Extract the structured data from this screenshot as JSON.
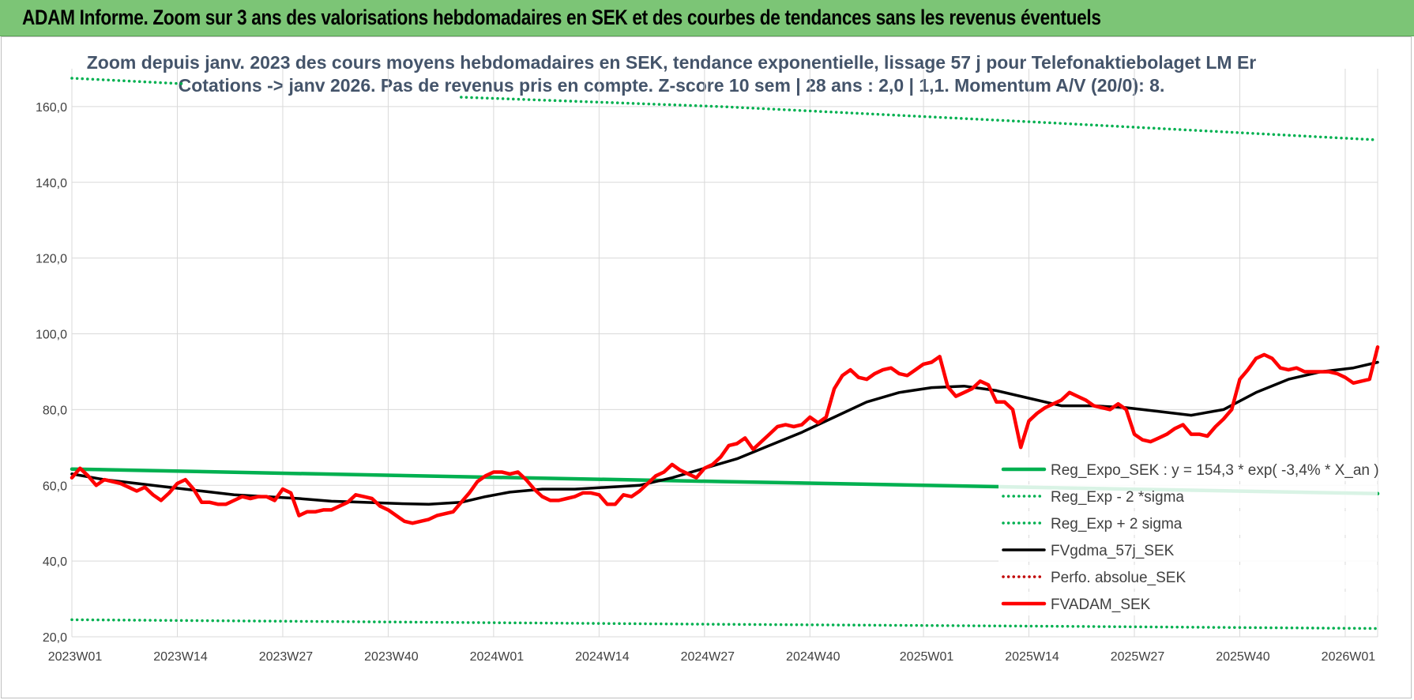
{
  "banner": {
    "title": "ADAM Informe. Zoom sur 3 ans des valorisations hebdomadaires en SEK et des courbes de tendances sans les revenus éventuels",
    "bg_color": "#7cc576"
  },
  "chart_data": {
    "type": "line",
    "title_line1": "Zoom depuis janv. 2023 des cours moyens hebdomadaires en SEK, tendance exponentielle, lissage 57 j pour Telefonaktiebolaget LM Er",
    "title_line2": "Cotations -> janv 2026. Pas de revenus pris en compte. Z-score 10 sem | 28 ans : 2,0 | 1,1. Momentum A/V (20/0): 8.",
    "xlabel": "",
    "ylabel": "",
    "ylim": [
      20,
      170
    ],
    "xlim": [
      0,
      161
    ],
    "grid": true,
    "legend_position": "right-bottom",
    "y_ticks": [
      {
        "value": 20,
        "label": "20,0"
      },
      {
        "value": 40,
        "label": "40,0"
      },
      {
        "value": 60,
        "label": "60,0"
      },
      {
        "value": 80,
        "label": "80,0"
      },
      {
        "value": 100,
        "label": "100,0"
      },
      {
        "value": 120,
        "label": "120,0"
      },
      {
        "value": 140,
        "label": "140,0"
      },
      {
        "value": 160,
        "label": "160,0"
      }
    ],
    "x_ticks": [
      {
        "week": 0,
        "label": "2023W01"
      },
      {
        "week": 13,
        "label": "2023W14"
      },
      {
        "week": 26,
        "label": "2023W27"
      },
      {
        "week": 39,
        "label": "2023W40"
      },
      {
        "week": 52,
        "label": "2024W01"
      },
      {
        "week": 65,
        "label": "2024W14"
      },
      {
        "week": 78,
        "label": "2024W27"
      },
      {
        "week": 91,
        "label": "2024W40"
      },
      {
        "week": 105,
        "label": "2025W01"
      },
      {
        "week": 118,
        "label": "2025W14"
      },
      {
        "week": 131,
        "label": "2025W27"
      },
      {
        "week": 144,
        "label": "2025W40"
      },
      {
        "week": 157,
        "label": "2026W01"
      }
    ],
    "series": [
      {
        "name": "Reg_Expo_SEK : y = 154,3 * exp( -3,4% *  X_an )",
        "color": "#00b050",
        "style": "solid-thick",
        "points": [
          [
            0,
            64.3
          ],
          [
            40,
            62.6
          ],
          [
            80,
            61.0
          ],
          [
            120,
            59.4
          ],
          [
            161,
            57.8
          ]
        ]
      },
      {
        "name": "Reg_Exp - 2 *sigma",
        "color": "#00b050",
        "style": "dotted",
        "points": [
          [
            0,
            24.5
          ],
          [
            40,
            23.9
          ],
          [
            80,
            23.3
          ],
          [
            120,
            22.8
          ],
          [
            161,
            22.2
          ]
        ]
      },
      {
        "name": "Reg_Exp + 2 sigma",
        "color": "#00b050",
        "style": "dotted",
        "points": [
          [
            0,
            167.5
          ],
          [
            14,
            166.0
          ],
          [
            null,
            null
          ],
          [
            48,
            162.5
          ],
          [
            80,
            160.0
          ],
          [
            120,
            155.8
          ],
          [
            161,
            151.2
          ]
        ]
      },
      {
        "name": "FVgdma_57j_SEK",
        "color": "#000000",
        "style": "solid",
        "points": [
          [
            0,
            63.0
          ],
          [
            4,
            61.5
          ],
          [
            8,
            60.5
          ],
          [
            12,
            59.5
          ],
          [
            16,
            58.5
          ],
          [
            20,
            57.5
          ],
          [
            24,
            57.0
          ],
          [
            28,
            56.5
          ],
          [
            32,
            55.8
          ],
          [
            36,
            55.5
          ],
          [
            40,
            55.2
          ],
          [
            44,
            55.0
          ],
          [
            48,
            55.5
          ],
          [
            51,
            57.0
          ],
          [
            54,
            58.2
          ],
          [
            58,
            59.0
          ],
          [
            62,
            59.0
          ],
          [
            66,
            59.5
          ],
          [
            70,
            60.0
          ],
          [
            74,
            62.0
          ],
          [
            78,
            64.5
          ],
          [
            82,
            67.0
          ],
          [
            86,
            70.5
          ],
          [
            90,
            74.0
          ],
          [
            94,
            78.0
          ],
          [
            98,
            82.0
          ],
          [
            102,
            84.5
          ],
          [
            106,
            85.8
          ],
          [
            110,
            86.2
          ],
          [
            114,
            85.0
          ],
          [
            118,
            83.0
          ],
          [
            122,
            81.0
          ],
          [
            126,
            81.0
          ],
          [
            130,
            80.5
          ],
          [
            134,
            79.5
          ],
          [
            138,
            78.5
          ],
          [
            142,
            80.0
          ],
          [
            146,
            84.5
          ],
          [
            150,
            88.0
          ],
          [
            154,
            90.0
          ],
          [
            158,
            91.0
          ],
          [
            161,
            92.5
          ]
        ]
      },
      {
        "name": "Perfo. absolue_SEK",
        "color": "#c00000",
        "style": "dotted",
        "points": []
      },
      {
        "name": "FVADAM_SEK",
        "color": "#ff0000",
        "style": "solid-thick",
        "points": [
          [
            0,
            62.0
          ],
          [
            1,
            64.5
          ],
          [
            2,
            62.5
          ],
          [
            3,
            60.0
          ],
          [
            4,
            61.5
          ],
          [
            5,
            61.0
          ],
          [
            6,
            60.5
          ],
          [
            7,
            59.5
          ],
          [
            8,
            58.5
          ],
          [
            9,
            59.5
          ],
          [
            10,
            57.5
          ],
          [
            11,
            56.0
          ],
          [
            12,
            58.0
          ],
          [
            13,
            60.5
          ],
          [
            14,
            61.5
          ],
          [
            15,
            59.0
          ],
          [
            16,
            55.5
          ],
          [
            17,
            55.5
          ],
          [
            18,
            55.0
          ],
          [
            19,
            55.0
          ],
          [
            20,
            56.0
          ],
          [
            21,
            57.0
          ],
          [
            22,
            56.5
          ],
          [
            23,
            57.0
          ],
          [
            24,
            57.0
          ],
          [
            25,
            56.0
          ],
          [
            26,
            59.0
          ],
          [
            27,
            58.0
          ],
          [
            28,
            52.0
          ],
          [
            29,
            53.0
          ],
          [
            30,
            53.0
          ],
          [
            31,
            53.5
          ],
          [
            32,
            53.5
          ],
          [
            33,
            54.5
          ],
          [
            34,
            55.5
          ],
          [
            35,
            57.5
          ],
          [
            36,
            57.0
          ],
          [
            37,
            56.5
          ],
          [
            38,
            54.5
          ],
          [
            39,
            53.5
          ],
          [
            40,
            52.0
          ],
          [
            41,
            50.5
          ],
          [
            42,
            50.0
          ],
          [
            43,
            50.5
          ],
          [
            44,
            51.0
          ],
          [
            45,
            52.0
          ],
          [
            46,
            52.5
          ],
          [
            47,
            53.0
          ],
          [
            48,
            55.5
          ],
          [
            49,
            58.0
          ],
          [
            50,
            61.0
          ],
          [
            51,
            62.5
          ],
          [
            52,
            63.5
          ],
          [
            53,
            63.5
          ],
          [
            54,
            63.0
          ],
          [
            55,
            63.5
          ],
          [
            56,
            61.5
          ],
          [
            57,
            59.0
          ],
          [
            58,
            57.0
          ],
          [
            59,
            56.0
          ],
          [
            60,
            56.0
          ],
          [
            61,
            56.5
          ],
          [
            62,
            57.0
          ],
          [
            63,
            58.0
          ],
          [
            64,
            58.0
          ],
          [
            65,
            57.5
          ],
          [
            66,
            55.0
          ],
          [
            67,
            55.0
          ],
          [
            68,
            57.5
          ],
          [
            69,
            57.0
          ],
          [
            70,
            58.5
          ],
          [
            71,
            60.5
          ],
          [
            72,
            62.5
          ],
          [
            73,
            63.5
          ],
          [
            74,
            65.5
          ],
          [
            75,
            64.0
          ],
          [
            76,
            63.0
          ],
          [
            77,
            62.0
          ],
          [
            78,
            64.5
          ],
          [
            79,
            65.5
          ],
          [
            80,
            67.5
          ],
          [
            81,
            70.5
          ],
          [
            82,
            71.0
          ],
          [
            83,
            72.5
          ],
          [
            84,
            69.5
          ],
          [
            85,
            71.5
          ],
          [
            86,
            73.5
          ],
          [
            87,
            75.5
          ],
          [
            88,
            76.0
          ],
          [
            89,
            75.5
          ],
          [
            90,
            76.0
          ],
          [
            91,
            78.0
          ],
          [
            92,
            76.5
          ],
          [
            93,
            78.0
          ],
          [
            94,
            85.5
          ],
          [
            95,
            89.0
          ],
          [
            96,
            90.5
          ],
          [
            97,
            88.5
          ],
          [
            98,
            88.0
          ],
          [
            99,
            89.5
          ],
          [
            100,
            90.5
          ],
          [
            101,
            91.0
          ],
          [
            102,
            89.5
          ],
          [
            103,
            89.0
          ],
          [
            104,
            90.5
          ],
          [
            105,
            92.0
          ],
          [
            106,
            92.5
          ],
          [
            107,
            94.0
          ],
          [
            108,
            86.0
          ],
          [
            109,
            83.5
          ],
          [
            110,
            84.5
          ],
          [
            111,
            85.5
          ],
          [
            112,
            87.5
          ],
          [
            113,
            86.5
          ],
          [
            114,
            82.0
          ],
          [
            115,
            82.0
          ],
          [
            116,
            80.0
          ],
          [
            117,
            70.0
          ],
          [
            118,
            77.0
          ],
          [
            119,
            79.0
          ],
          [
            120,
            80.5
          ],
          [
            121,
            81.5
          ],
          [
            122,
            82.5
          ],
          [
            123,
            84.5
          ],
          [
            124,
            83.5
          ],
          [
            125,
            82.5
          ],
          [
            126,
            81.0
          ],
          [
            127,
            80.5
          ],
          [
            128,
            80.0
          ],
          [
            129,
            81.5
          ],
          [
            130,
            80.0
          ],
          [
            131,
            73.5
          ],
          [
            132,
            72.0
          ],
          [
            133,
            71.5
          ],
          [
            134,
            72.5
          ],
          [
            135,
            73.5
          ],
          [
            136,
            75.0
          ],
          [
            137,
            76.0
          ],
          [
            138,
            73.5
          ],
          [
            139,
            73.5
          ],
          [
            140,
            73.0
          ],
          [
            141,
            75.5
          ],
          [
            142,
            77.5
          ],
          [
            143,
            80.0
          ],
          [
            144,
            88.0
          ],
          [
            145,
            90.5
          ],
          [
            146,
            93.5
          ],
          [
            147,
            94.5
          ],
          [
            148,
            93.5
          ],
          [
            149,
            91.0
          ],
          [
            150,
            90.5
          ],
          [
            151,
            91.0
          ],
          [
            152,
            90.0
          ],
          [
            153,
            90.0
          ],
          [
            154,
            90.0
          ],
          [
            155,
            90.0
          ],
          [
            156,
            89.5
          ],
          [
            157,
            88.5
          ],
          [
            158,
            87.0
          ],
          [
            159,
            87.5
          ],
          [
            160,
            88.0
          ],
          [
            161,
            96.5
          ]
        ]
      }
    ]
  }
}
